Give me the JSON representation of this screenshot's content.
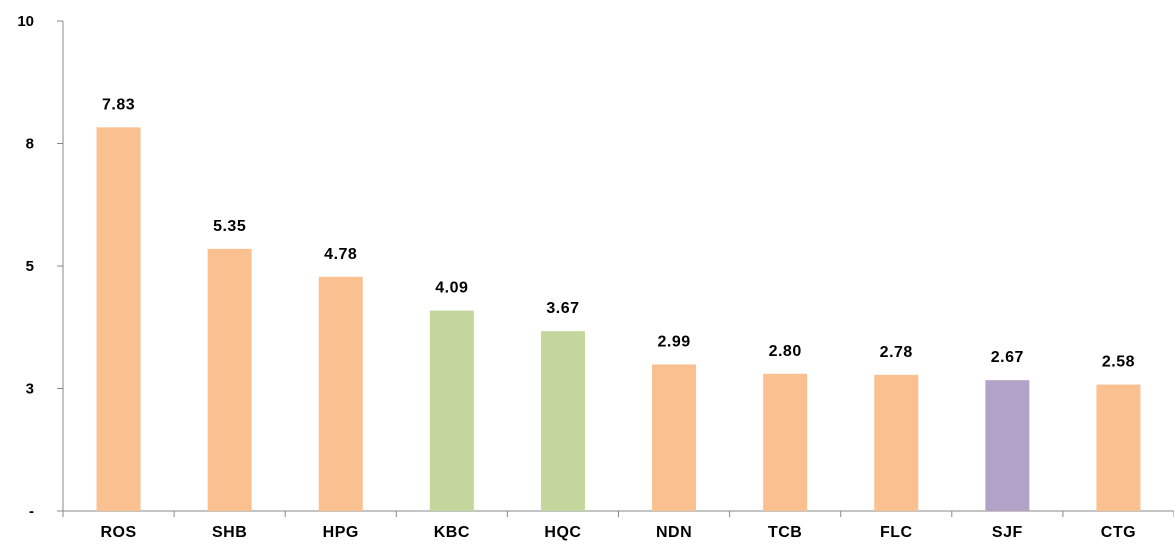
{
  "chart_data": {
    "type": "bar",
    "categories": [
      "ROS",
      "SHB",
      "HPG",
      "KBC",
      "HQC",
      "NDN",
      "TCB",
      "FLC",
      "SJF",
      "CTG"
    ],
    "values": [
      7.83,
      5.35,
      4.78,
      4.09,
      3.67,
      2.99,
      2.8,
      2.78,
      2.67,
      2.58
    ],
    "data_labels": [
      "7.83",
      "5.35",
      "4.78",
      "4.09",
      "3.67",
      "2.99",
      "2.80",
      "2.78",
      "2.67",
      "2.58"
    ],
    "bar_colors": [
      "#FAC090",
      "#FAC090",
      "#FAC090",
      "#C3D69B",
      "#C3D69B",
      "#FAC090",
      "#FAC090",
      "#FAC090",
      "#B3A2C7",
      "#FAC090"
    ],
    "ylim": [
      0,
      10
    ],
    "yticks": [
      {
        "value": 0,
        "label": "-"
      },
      {
        "value": 2.5,
        "label": "3"
      },
      {
        "value": 5,
        "label": "5"
      },
      {
        "value": 7.5,
        "label": "8"
      },
      {
        "value": 10,
        "label": "10"
      }
    ],
    "grid": false,
    "legend": "none",
    "title": "",
    "xlabel": "",
    "ylabel": ""
  }
}
